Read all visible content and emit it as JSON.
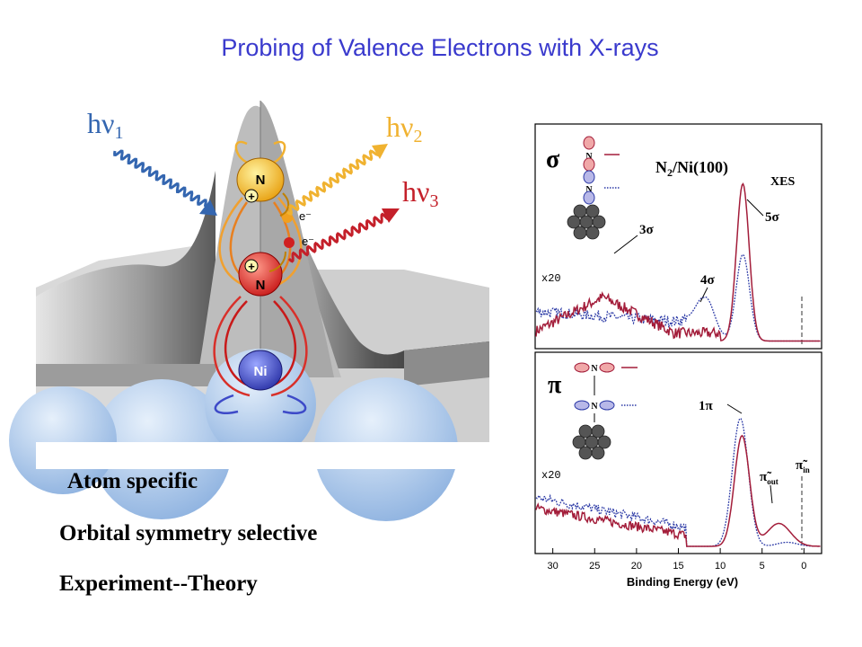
{
  "slide": {
    "title": "Probing of Valence Electrons with X-rays",
    "bullets": [
      "Atom specific",
      "Orbital symmetry selective",
      "Experiment--Theory"
    ]
  },
  "illustration": {
    "photons": [
      {
        "base": "hν",
        "sub": "1",
        "color": "#3466b0"
      },
      {
        "base": "hν",
        "sub": "2",
        "color": "#f0b230"
      },
      {
        "base": "hν",
        "sub": "3",
        "color": "#c4202a"
      }
    ],
    "atoms": {
      "top": "N",
      "middle": "N",
      "bottom": "Ni"
    },
    "electron": "e⁻",
    "plus": "+"
  },
  "spectra": {
    "title_main": "N",
    "title_sub": "2",
    "title_rest": "/Ni(100)",
    "technique": "XES",
    "xlabel": "Binding Energy (eV)",
    "x_ticks": [
      "30",
      "25",
      "20",
      "15",
      "10",
      "5",
      "0"
    ],
    "x_range": [
      32,
      -2
    ],
    "panels": [
      {
        "symmetry": "σ",
        "scale": "x20",
        "peak_labels": [
          "3σ",
          "4σ",
          "5σ"
        ]
      },
      {
        "symmetry": "π",
        "scale": "x20",
        "peak_labels": [
          "1π",
          "π̃",
          "out",
          "π̃",
          "in"
        ]
      }
    ],
    "colors": {
      "solid": "#a31d3a",
      "dotted": "#2c3aa6"
    }
  }
}
